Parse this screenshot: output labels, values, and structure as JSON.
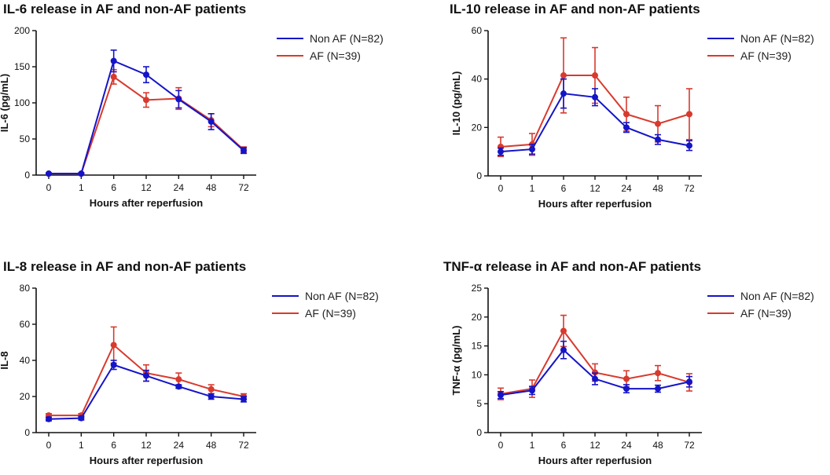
{
  "colors": {
    "non_af": "#1414c8",
    "af": "#d83a2e",
    "axis": "#111111"
  },
  "legend": {
    "non_af": "Non AF (N=82)",
    "af": "AF (N=39)"
  },
  "chart_data": [
    {
      "type": "line",
      "title": "IL-6 release in AF and non-AF patients",
      "xlabel": "Hours after reperfusion",
      "ylabel": "IL-6 (pg/mL)",
      "categories": [
        "0",
        "1",
        "6",
        "12",
        "24",
        "48",
        "72"
      ],
      "ylim": [
        0,
        200
      ],
      "yticks": [
        0,
        50,
        100,
        150,
        200
      ],
      "legend_position": "top-right",
      "series": [
        {
          "name": "Non AF (N=82)",
          "color_key": "non_af",
          "values": [
            2,
            2,
            158,
            139,
            105,
            74,
            34
          ],
          "errors": [
            1,
            1,
            15,
            11,
            12,
            11,
            4
          ]
        },
        {
          "name": "AF (N=39)",
          "color_key": "af",
          "values": [
            2,
            2,
            136,
            104,
            106,
            76,
            35
          ],
          "errors": [
            1,
            1,
            10,
            10,
            15,
            9,
            4
          ]
        }
      ]
    },
    {
      "type": "line",
      "title": "IL-10 release in AF and non-AF patients",
      "xlabel": "Hours after reperfusion",
      "ylabel": "IL-10 (pg/mL)",
      "categories": [
        "0",
        "1",
        "6",
        "12",
        "24",
        "48",
        "72"
      ],
      "ylim": [
        0,
        60
      ],
      "yticks": [
        0,
        20,
        40,
        60
      ],
      "legend_position": "top-right",
      "series": [
        {
          "name": "Non AF (N=82)",
          "color_key": "non_af",
          "values": [
            10,
            11,
            34,
            32.5,
            20,
            15,
            12.5
          ],
          "errors": [
            1.5,
            2,
            6,
            3.5,
            2,
            2,
            2
          ]
        },
        {
          "name": "AF (N=39)",
          "color_key": "af",
          "values": [
            12,
            13,
            41.5,
            41.5,
            25.5,
            21.5,
            25.5
          ],
          "errors": [
            4,
            4.5,
            15.5,
            11.5,
            7,
            7.5,
            10.5
          ]
        }
      ]
    },
    {
      "type": "line",
      "title": "IL-8 release in AF and non-AF patients",
      "xlabel": "Hours after reperfusion",
      "ylabel": "IL-8",
      "categories": [
        "0",
        "1",
        "6",
        "12",
        "24",
        "48",
        "72"
      ],
      "ylim": [
        0,
        80
      ],
      "yticks": [
        0,
        20,
        40,
        60,
        80
      ],
      "legend_position": "top-right",
      "series": [
        {
          "name": "Non AF (N=82)",
          "color_key": "non_af",
          "values": [
            7.5,
            8,
            37.5,
            31.5,
            25.5,
            20,
            18.5
          ],
          "errors": [
            1,
            1,
            2.5,
            3,
            1,
            1.5,
            1.5
          ]
        },
        {
          "name": "AF (N=39)",
          "color_key": "af",
          "values": [
            9.5,
            9.5,
            48.5,
            33,
            29.5,
            24,
            20
          ],
          "errors": [
            1,
            1,
            10,
            4.5,
            3.5,
            2.5,
            1.5
          ]
        }
      ]
    },
    {
      "type": "line",
      "title": "TNF-α release in AF and non-AF patients",
      "xlabel": "Hours after reperfusion",
      "ylabel": "TNF-α (pg/mL)",
      "categories": [
        "0",
        "1",
        "6",
        "12",
        "24",
        "48",
        "72"
      ],
      "ylim": [
        0,
        25
      ],
      "yticks": [
        0,
        5,
        10,
        15,
        20,
        25
      ],
      "legend_position": "top-right",
      "series": [
        {
          "name": "Non AF (N=82)",
          "color_key": "non_af",
          "values": [
            6.5,
            7.3,
            14.3,
            9.3,
            7.6,
            7.6,
            8.8
          ],
          "errors": [
            0.6,
            0.7,
            1.5,
            1,
            0.7,
            0.6,
            0.9
          ]
        },
        {
          "name": "AF (N=39)",
          "color_key": "af",
          "values": [
            6.7,
            7.6,
            17.6,
            10.4,
            9.3,
            10.3,
            8.7
          ],
          "errors": [
            1,
            1.5,
            2.7,
            1.5,
            1.4,
            1.3,
            1.5
          ]
        }
      ]
    }
  ]
}
